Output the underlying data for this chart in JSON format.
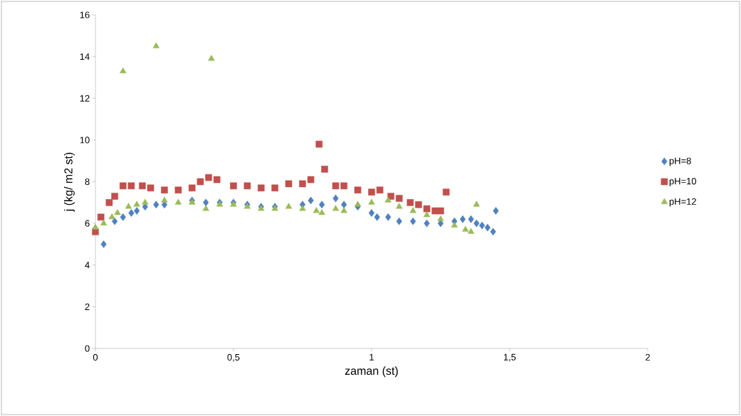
{
  "chart_data": {
    "type": "scatter",
    "xlabel": "zaman (st)",
    "ylabel": "j (kg/ m2 st)",
    "xlim": [
      0,
      2
    ],
    "ylim": [
      0,
      16
    ],
    "xticks": [
      0,
      {
        "value": 0.5,
        "label": "0,5"
      },
      1,
      {
        "value": 1.5,
        "label": "1,5"
      },
      2
    ],
    "yticks": [
      0,
      2,
      4,
      6,
      8,
      10,
      12,
      14,
      16
    ],
    "legend": "right",
    "grid": false,
    "series": [
      {
        "name": "pH=8",
        "color": "#4f81bd",
        "marker": "diamond",
        "x": [
          0.03,
          0.07,
          0.1,
          0.13,
          0.15,
          0.18,
          0.22,
          0.25,
          0.3,
          0.35,
          0.4,
          0.45,
          0.5,
          0.55,
          0.6,
          0.65,
          0.7,
          0.75,
          0.78,
          0.82,
          0.87,
          0.9,
          0.95,
          1.0,
          1.02,
          1.06,
          1.1,
          1.15,
          1.2,
          1.25,
          1.3,
          1.33,
          1.36,
          1.38,
          1.4,
          1.42,
          1.44,
          1.45
        ],
        "values": [
          5.0,
          6.1,
          6.3,
          6.5,
          6.6,
          6.8,
          6.9,
          6.9,
          null,
          7.1,
          7.0,
          7.0,
          7.0,
          6.9,
          6.8,
          6.8,
          null,
          6.9,
          7.1,
          6.9,
          7.2,
          6.9,
          6.8,
          6.5,
          6.3,
          6.3,
          6.1,
          6.1,
          6.0,
          6.0,
          6.1,
          6.2,
          6.2,
          6.0,
          5.9,
          5.8,
          5.6,
          6.6
        ]
      },
      {
        "name": "pH=10",
        "color": "#c0504d",
        "marker": "square",
        "x": [
          0.0,
          0.02,
          0.05,
          0.07,
          0.1,
          0.13,
          0.17,
          0.2,
          0.25,
          0.3,
          0.35,
          0.38,
          0.41,
          0.44,
          0.5,
          0.55,
          0.6,
          0.65,
          0.7,
          0.75,
          0.78,
          0.81,
          0.83,
          0.87,
          0.9,
          0.95,
          1.0,
          1.03,
          1.07,
          1.1,
          1.14,
          1.17,
          1.2,
          1.23,
          1.25,
          1.27
        ],
        "values": [
          5.6,
          6.3,
          7.0,
          7.3,
          7.8,
          7.8,
          7.8,
          7.7,
          7.6,
          7.6,
          7.7,
          8.0,
          8.2,
          8.1,
          7.8,
          7.8,
          7.7,
          7.7,
          7.9,
          7.9,
          8.1,
          9.8,
          8.6,
          7.8,
          7.8,
          7.6,
          7.5,
          7.6,
          7.3,
          7.2,
          7.0,
          6.9,
          6.7,
          6.6,
          6.6,
          7.5
        ]
      },
      {
        "name": "pH=12",
        "color": "#9bbb59",
        "marker": "triangle",
        "x": [
          0.0,
          0.03,
          0.06,
          0.08,
          0.1,
          0.12,
          0.15,
          0.18,
          0.22,
          0.25,
          0.3,
          0.35,
          0.4,
          0.42,
          0.45,
          0.5,
          0.55,
          0.6,
          0.65,
          0.7,
          0.75,
          0.8,
          0.82,
          0.87,
          0.9,
          0.95,
          1.0,
          1.06,
          1.1,
          1.15,
          1.2,
          1.25,
          1.3,
          1.34,
          1.36,
          1.38
        ],
        "values": [
          5.8,
          6.0,
          6.3,
          6.5,
          13.3,
          6.8,
          6.9,
          7.0,
          14.5,
          7.1,
          7.0,
          7.0,
          6.7,
          13.9,
          6.9,
          6.9,
          6.8,
          6.7,
          6.7,
          6.8,
          6.7,
          6.6,
          6.5,
          6.7,
          6.6,
          6.9,
          7.0,
          7.1,
          6.8,
          6.6,
          6.4,
          6.2,
          5.9,
          5.7,
          5.6,
          6.9
        ]
      }
    ]
  }
}
